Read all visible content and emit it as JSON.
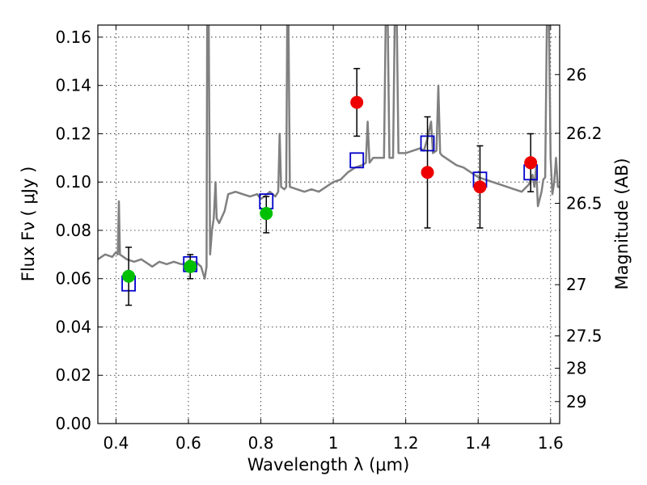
{
  "chart_data": {
    "type": "scatter",
    "xlabel": "Wavelength  λ (μm)",
    "ylabel": "Flux  Fν  ( μJy )",
    "ylabel_right": "Magnitude (AB)",
    "xlim": [
      0.35,
      1.625
    ],
    "ylim": [
      0.0,
      0.165
    ],
    "grid": true,
    "x_ticks": [
      0.4,
      0.6,
      0.8,
      1.0,
      1.2,
      1.4,
      1.6
    ],
    "x_tick_labels": [
      "0.4",
      "0.6",
      "0.8",
      "1",
      "1.2",
      "1.4",
      "1.6"
    ],
    "y_ticks": [
      0.0,
      0.02,
      0.04,
      0.06,
      0.08,
      0.1,
      0.12,
      0.14,
      0.16
    ],
    "y_tick_labels": [
      "0.00",
      "0.02",
      "0.04",
      "0.06",
      "0.08",
      "0.10",
      "0.12",
      "0.14",
      "0.16"
    ],
    "right_ticks": [
      {
        "flux": 0.1445,
        "label": "26"
      },
      {
        "flux": 0.1202,
        "label": "26.2"
      },
      {
        "flux": 0.0912,
        "label": "26.5"
      },
      {
        "flux": 0.0575,
        "label": "27"
      },
      {
        "flux": 0.0363,
        "label": "27.5"
      },
      {
        "flux": 0.0229,
        "label": "28"
      },
      {
        "flux": 0.0091,
        "label": "29"
      }
    ],
    "series": [
      {
        "kind": "line",
        "color": "#808080",
        "points": [
          [
            0.35,
            0.068
          ],
          [
            0.37,
            0.07
          ],
          [
            0.39,
            0.069
          ],
          [
            0.4,
            0.071
          ],
          [
            0.405,
            0.07
          ],
          [
            0.408,
            0.092
          ],
          [
            0.411,
            0.07
          ],
          [
            0.43,
            0.068
          ],
          [
            0.45,
            0.067
          ],
          [
            0.47,
            0.068
          ],
          [
            0.49,
            0.066
          ],
          [
            0.5,
            0.065
          ],
          [
            0.52,
            0.067
          ],
          [
            0.54,
            0.066
          ],
          [
            0.56,
            0.067
          ],
          [
            0.58,
            0.066
          ],
          [
            0.6,
            0.066
          ],
          [
            0.62,
            0.067
          ],
          [
            0.635,
            0.065
          ],
          [
            0.645,
            0.06
          ],
          [
            0.65,
            0.065
          ],
          [
            0.652,
            0.17
          ],
          [
            0.656,
            0.17
          ],
          [
            0.66,
            0.07
          ],
          [
            0.665,
            0.08
          ],
          [
            0.67,
            0.085
          ],
          [
            0.675,
            0.1
          ],
          [
            0.678,
            0.085
          ],
          [
            0.685,
            0.083
          ],
          [
            0.7,
            0.088
          ],
          [
            0.71,
            0.095
          ],
          [
            0.73,
            0.096
          ],
          [
            0.75,
            0.095
          ],
          [
            0.77,
            0.094
          ],
          [
            0.79,
            0.095
          ],
          [
            0.8,
            0.093
          ],
          [
            0.81,
            0.094
          ],
          [
            0.825,
            0.096
          ],
          [
            0.84,
            0.094
          ],
          [
            0.848,
            0.096
          ],
          [
            0.852,
            0.12
          ],
          [
            0.856,
            0.098
          ],
          [
            0.865,
            0.097
          ],
          [
            0.87,
            0.098
          ],
          [
            0.873,
            0.17
          ],
          [
            0.876,
            0.17
          ],
          [
            0.88,
            0.098
          ],
          [
            0.9,
            0.097
          ],
          [
            0.92,
            0.096
          ],
          [
            0.94,
            0.097
          ],
          [
            0.96,
            0.096
          ],
          [
            0.98,
            0.098
          ],
          [
            1.0,
            0.1
          ],
          [
            1.02,
            0.101
          ],
          [
            1.04,
            0.104
          ],
          [
            1.06,
            0.106
          ],
          [
            1.08,
            0.107
          ],
          [
            1.09,
            0.108
          ],
          [
            1.095,
            0.125
          ],
          [
            1.1,
            0.108
          ],
          [
            1.11,
            0.11
          ],
          [
            1.13,
            0.11
          ],
          [
            1.14,
            0.11
          ],
          [
            1.145,
            0.17
          ],
          [
            1.15,
            0.17
          ],
          [
            1.155,
            0.11
          ],
          [
            1.165,
            0.11
          ],
          [
            1.17,
            0.17
          ],
          [
            1.175,
            0.17
          ],
          [
            1.18,
            0.112
          ],
          [
            1.2,
            0.112
          ],
          [
            1.22,
            0.113
          ],
          [
            1.24,
            0.114
          ],
          [
            1.25,
            0.113
          ],
          [
            1.26,
            0.118
          ],
          [
            1.27,
            0.125
          ],
          [
            1.275,
            0.112
          ],
          [
            1.285,
            0.113
          ],
          [
            1.29,
            0.14
          ],
          [
            1.295,
            0.112
          ],
          [
            1.3,
            0.111
          ],
          [
            1.32,
            0.109
          ],
          [
            1.34,
            0.107
          ],
          [
            1.36,
            0.106
          ],
          [
            1.38,
            0.104
          ],
          [
            1.4,
            0.102
          ],
          [
            1.42,
            0.101
          ],
          [
            1.44,
            0.1
          ],
          [
            1.46,
            0.099
          ],
          [
            1.48,
            0.098
          ],
          [
            1.5,
            0.097
          ],
          [
            1.52,
            0.096
          ],
          [
            1.54,
            0.099
          ],
          [
            1.55,
            0.103
          ],
          [
            1.555,
            0.098
          ],
          [
            1.56,
            0.106
          ],
          [
            1.565,
            0.09
          ],
          [
            1.575,
            0.096
          ],
          [
            1.58,
            0.101
          ],
          [
            1.585,
            0.102
          ],
          [
            1.59,
            0.17
          ],
          [
            1.595,
            0.17
          ],
          [
            1.6,
            0.11
          ],
          [
            1.605,
            0.095
          ],
          [
            1.61,
            0.1
          ],
          [
            1.615,
            0.11
          ],
          [
            1.62,
            0.098
          ],
          [
            1.625,
            0.098
          ]
        ]
      },
      {
        "kind": "open-square",
        "color": "#0000cc",
        "points": [
          [
            0.435,
            0.058
          ],
          [
            0.605,
            0.066
          ],
          [
            0.815,
            0.092
          ],
          [
            1.065,
            0.109
          ],
          [
            1.26,
            0.116
          ],
          [
            1.405,
            0.101
          ],
          [
            1.545,
            0.104
          ]
        ]
      },
      {
        "kind": "filled-circle",
        "color": "#00c000",
        "points": [
          [
            0.435,
            0.061,
            0.049,
            0.073
          ],
          [
            0.605,
            0.065,
            0.06,
            0.07
          ],
          [
            0.815,
            0.087,
            0.079,
            0.094
          ]
        ]
      },
      {
        "kind": "filled-circle",
        "color": "#ee0000",
        "points": [
          [
            1.065,
            0.133,
            0.119,
            0.147
          ],
          [
            1.26,
            0.104,
            0.081,
            0.127
          ],
          [
            1.405,
            0.098,
            0.081,
            0.115
          ],
          [
            1.545,
            0.108,
            0.096,
            0.12
          ]
        ]
      }
    ]
  }
}
